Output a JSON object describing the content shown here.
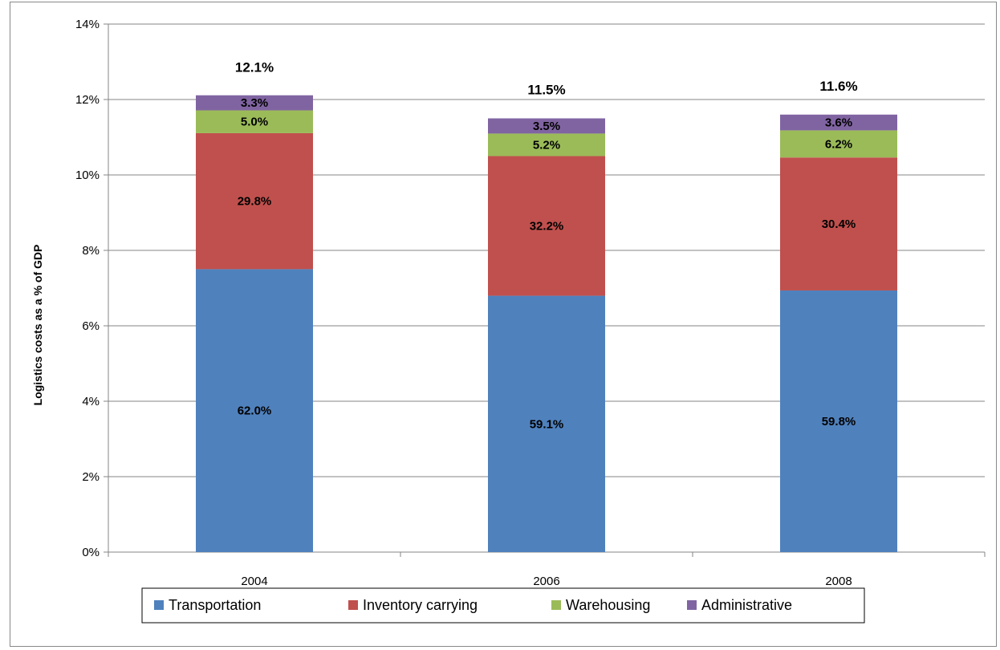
{
  "chart_data": {
    "type": "bar",
    "stacked": true,
    "categories": [
      "2004",
      "2006",
      "2008"
    ],
    "ylabel": "Logistics costs as a % of GDP",
    "xlabel": "",
    "ylim": [
      0,
      14
    ],
    "yticks": [
      "0%",
      "2%",
      "4%",
      "6%",
      "8%",
      "10%",
      "12%",
      "14%"
    ],
    "totals": [
      "12.1%",
      "11.5%",
      "11.6%"
    ],
    "total_values": [
      12.1,
      11.5,
      11.6
    ],
    "series": [
      {
        "name": "Transportation",
        "color": "#4F81BD",
        "share_labels": [
          "62.0%",
          "59.1%",
          "59.8%"
        ],
        "shares": [
          62.0,
          59.1,
          59.8
        ]
      },
      {
        "name": "Inventory carrying",
        "color": "#C0504D",
        "share_labels": [
          "29.8%",
          "32.2%",
          "30.4%"
        ],
        "shares": [
          29.8,
          32.2,
          30.4
        ]
      },
      {
        "name": "Warehousing",
        "color": "#9BBB59",
        "share_labels": [
          "5.0%",
          "5.2%",
          "6.2%"
        ],
        "shares": [
          5.0,
          5.2,
          6.2
        ]
      },
      {
        "name": "Administrative",
        "color": "#8064A2",
        "share_labels": [
          "3.3%",
          "3.5%",
          "3.6%"
        ],
        "shares": [
          3.3,
          3.5,
          3.6
        ]
      }
    ],
    "grid": true,
    "legend_position": "bottom"
  }
}
